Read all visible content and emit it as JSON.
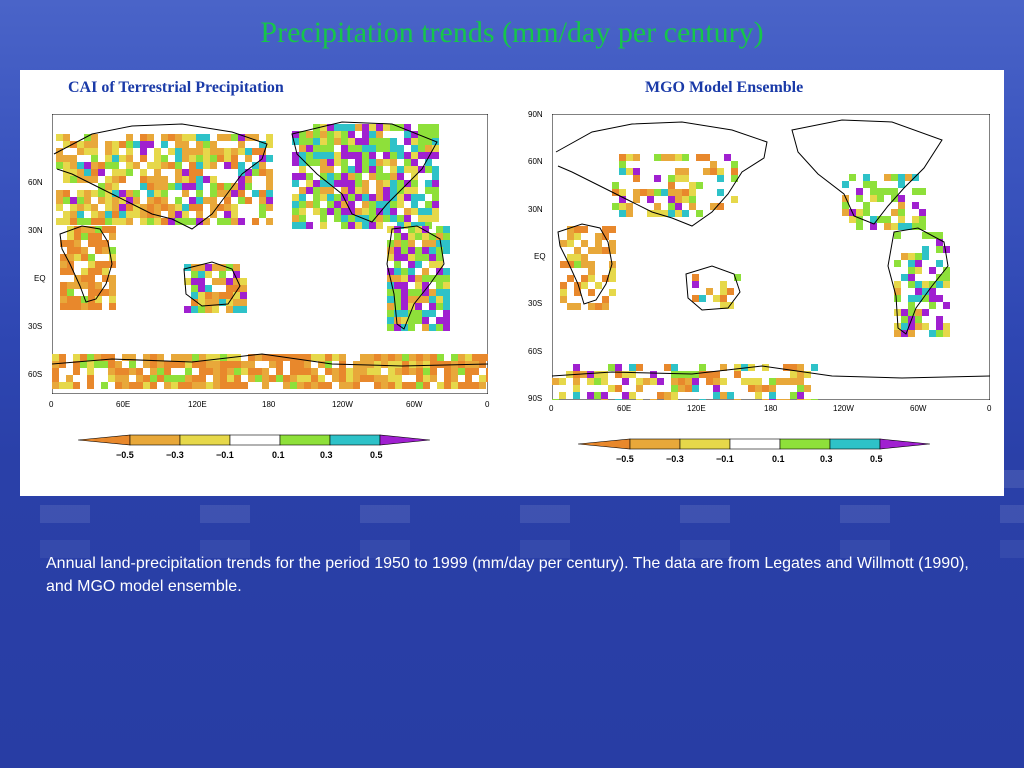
{
  "slide_title": "Precipitation trends (mm/day per century)",
  "left_map": {
    "title": "CAI of Terrestrial Precipitation",
    "lat_labels": [
      "60N",
      "30N",
      "EQ",
      "30S",
      "60S"
    ],
    "lon_labels": [
      "0",
      "60E",
      "120E",
      "180",
      "120W",
      "60W",
      "0"
    ]
  },
  "right_map": {
    "title": "MGO Model Ensemble",
    "lat_labels": [
      "90N",
      "60N",
      "30N",
      "EQ",
      "30S",
      "60S",
      "90S"
    ],
    "lon_labels": [
      "0",
      "60E",
      "120E",
      "180",
      "120W",
      "60W",
      "0"
    ]
  },
  "colorbar": {
    "ticks": [
      "−0.5",
      "−0.3",
      "−0.1",
      "0.1",
      "0.3",
      "0.5"
    ],
    "colors": [
      "#e8882c",
      "#e8a83a",
      "#e6d84a",
      "#ffffff",
      "#8ee03a",
      "#2ec2c8",
      "#a020d0"
    ]
  },
  "caption": "Annual land-precipitation trends for the period 1950 to 1999 (mm/day per century). The data are from Legates and Willmott (1990), and MGO model ensemble."
}
